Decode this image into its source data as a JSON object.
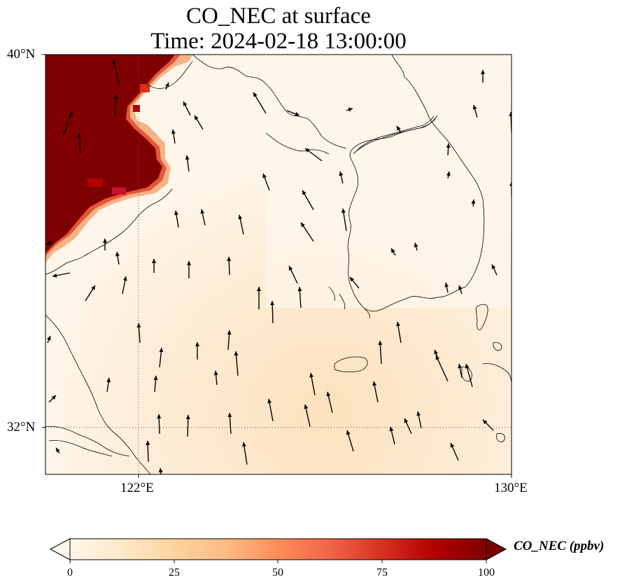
{
  "title": {
    "line1": "CO_NEC at surface",
    "line2": "Time: 2024-02-18 13:00:00"
  },
  "map": {
    "lat_range": [
      31,
      40
    ],
    "lon_range": [
      120,
      130
    ],
    "lat_ticks": [
      "40°N",
      "32°N"
    ],
    "lon_ticks": [
      "122°E",
      "130°E"
    ],
    "gridlines": "dotted",
    "region": "Yellow Sea, Korean Peninsula, eastern China coast",
    "high_concentration_area": "northwest corner (Shandong / Bohai region) > 100 ppbv"
  },
  "colorbar": {
    "label": "CO_NEC (ppbv)",
    "ticks": [
      "0",
      "25",
      "50",
      "75",
      "100"
    ],
    "min": 0,
    "max": 100,
    "extend": "both",
    "colormap": [
      "#fff7ec",
      "#fee8c8",
      "#fdd49e",
      "#fdbb84",
      "#fc8d59",
      "#ef6548",
      "#d7301f",
      "#b30000",
      "#7f0000"
    ]
  },
  "vectors": {
    "description": "surface wind arrows, mostly northward/northwestward",
    "color": "#000000"
  }
}
